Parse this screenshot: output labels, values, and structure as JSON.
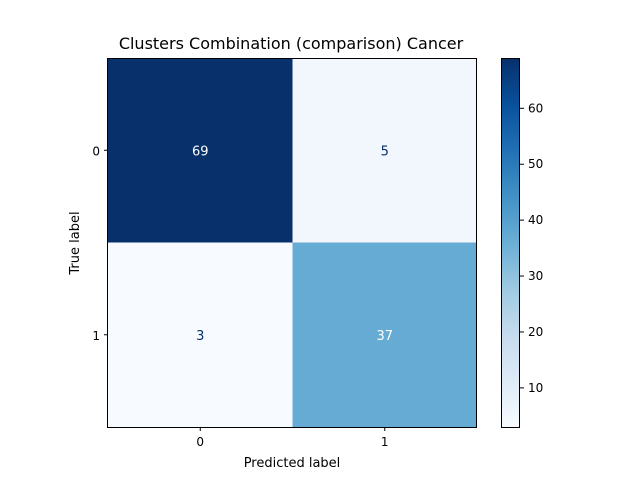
{
  "chart_data": {
    "type": "heatmap",
    "title": "Clusters Combination (comparison) Cancer",
    "xlabel": "Predicted label",
    "ylabel": "True label",
    "x_categories": [
      "0",
      "1"
    ],
    "y_categories": [
      "0",
      "1"
    ],
    "values": [
      [
        69,
        5
      ],
      [
        3,
        37
      ]
    ],
    "colormap": "Blues",
    "value_range": [
      3,
      69
    ],
    "colorbar_ticks": [
      10,
      20,
      30,
      40,
      50,
      60
    ],
    "grid": false
  }
}
